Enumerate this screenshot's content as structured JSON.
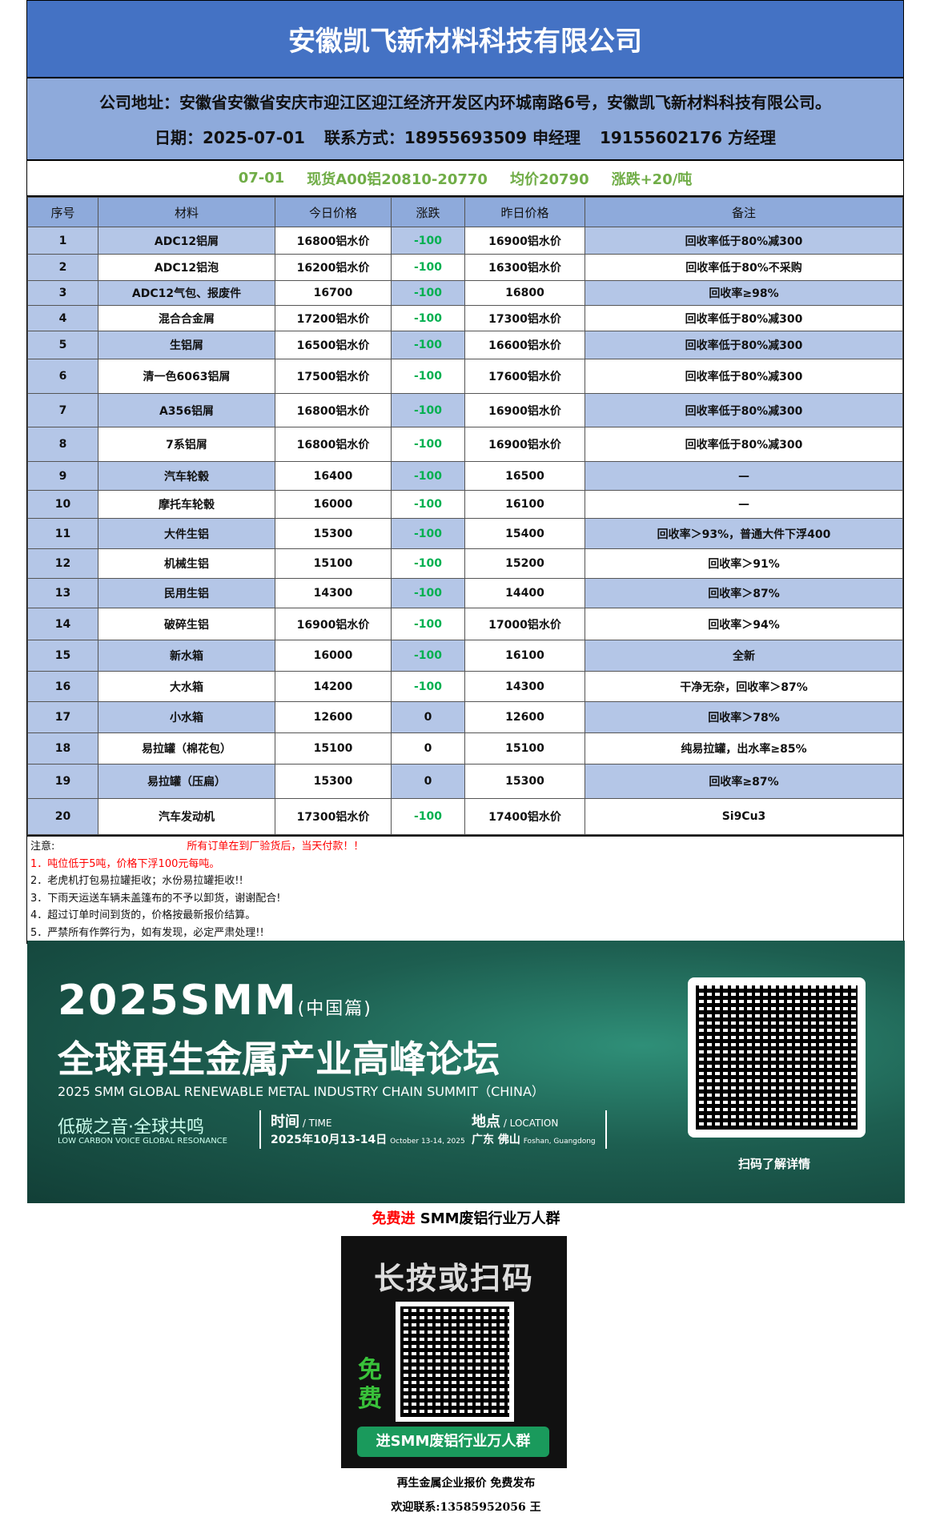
{
  "header": {
    "title": "安徽凯飞新材料科技有限公司",
    "address": "公司地址：安徽省安徽省安庆市迎江区迎江经济开发区内环城南路6号，安徽凯飞新材料科技有限公司。",
    "date": "日期：2025-07-01",
    "contact": "联系方式：18955693509 申经理",
    "contact2": "19155602176 方经理"
  },
  "spot": {
    "date": "07-01",
    "range": "现货A00铝20810-20770",
    "avg": "均价20790",
    "change": "涨跌+20/吨"
  },
  "table": {
    "columns": [
      "序号",
      "材料",
      "今日价格",
      "涨跌",
      "昨日价格",
      "备注"
    ],
    "rows": [
      [
        "1",
        "ADC12铝屑",
        "16800铝水价",
        "-100",
        "16900铝水价",
        "回收率低于80%减300"
      ],
      [
        "2",
        "ADC12铝泡",
        "16200铝水价",
        "-100",
        "16300铝水价",
        "回收率低于80%不采购"
      ],
      [
        "3",
        "ADC12气包、报废件",
        "16700",
        "-100",
        "16800",
        "回收率≥98%"
      ],
      [
        "4",
        "混合合金屑",
        "17200铝水价",
        "-100",
        "17300铝水价",
        "回收率低于80%减300"
      ],
      [
        "5",
        "生铝屑",
        "16500铝水价",
        "-100",
        "16600铝水价",
        "回收率低于80%减300"
      ],
      [
        "6",
        "清一色6063铝屑",
        "17500铝水价",
        "-100",
        "17600铝水价",
        "回收率低于80%减300"
      ],
      [
        "7",
        "A356铝屑",
        "16800铝水价",
        "-100",
        "16900铝水价",
        "回收率低于80%减300"
      ],
      [
        "8",
        "7系铝屑",
        "16800铝水价",
        "-100",
        "16900铝水价",
        "回收率低于80%减300"
      ],
      [
        "9",
        "汽车轮毂",
        "16400",
        "-100",
        "16500",
        "—"
      ],
      [
        "10",
        "摩托车轮毂",
        "16000",
        "-100",
        "16100",
        "—"
      ],
      [
        "11",
        "大件生铝",
        "15300",
        "-100",
        "15400",
        "回收率＞93%，普通大件下浮400"
      ],
      [
        "12",
        "机械生铝",
        "15100",
        "-100",
        "15200",
        "回收率＞91%"
      ],
      [
        "13",
        "民用生铝",
        "14300",
        "-100",
        "14400",
        "回收率＞87%"
      ],
      [
        "14",
        "破碎生铝",
        "16900铝水价",
        "-100",
        "17000铝水价",
        "回收率＞94%"
      ],
      [
        "15",
        "新水箱",
        "16000",
        "-100",
        "16100",
        "全新"
      ],
      [
        "16",
        "大水箱",
        "14200",
        "-100",
        "14300",
        "干净无杂，回收率＞87%"
      ],
      [
        "17",
        "小水箱",
        "12600",
        "0",
        "12600",
        "回收率＞78%"
      ],
      [
        "18",
        "易拉罐（棉花包）",
        "15100",
        "0",
        "15100",
        "纯易拉罐，出水率≥85%"
      ],
      [
        "19",
        "易拉罐（压扁）",
        "15300",
        "0",
        "15300",
        "回收率≥87%"
      ],
      [
        "20",
        "汽车发动机",
        "17300铝水价",
        "-100",
        "17400铝水价",
        "Si9Cu3"
      ]
    ]
  },
  "notes": {
    "label": "注意:",
    "headline": "所有订单在到厂验货后，当天付款！！",
    "items": [
      "1．吨位低于5吨，价格下浮100元每吨。",
      "2．老虎机打包易拉罐拒收；水份易拉罐拒收!!",
      "3．下雨天运送车辆未盖篷布的不予以卸货，谢谢配合!",
      "4．超过订单时间到货的，价格按最新报价结算。",
      "5．严禁所有作弊行为，如有发现，必定严肃处理!!"
    ]
  },
  "banner": {
    "year": "2025SMM",
    "edition": "(中国篇)",
    "title": "全球再生金属产业高峰论坛",
    "subtitle": "2025 SMM GLOBAL RENEWABLE METAL INDUSTRY CHAIN SUMMIT（CHINA）",
    "slogan": "低碳之音·全球共鸣",
    "slogan_en": "LOW CARBON VOICE GLOBAL RESONANCE",
    "time_label": "时间",
    "time_en": "/ TIME",
    "time": "2025年10月13-14日",
    "time_date_en": "October 13-14, 2025",
    "loc_label": "地点",
    "loc_en": "/ LOCATION",
    "loc": "广东 佛山",
    "loc_city_en": "Foshan, Guangdong",
    "scan": "扫码了解详情"
  },
  "group": {
    "free": "免费进",
    "title": " SMM废铝行业万人群",
    "card_title": "长按或扫码",
    "free_badge": "免费",
    "card_button": "进SMM废铝行业万人群"
  },
  "footer": {
    "line1": "再生金属企业报价  免费发布",
    "line2": "欢迎联系:13585952056  王"
  },
  "colors": {
    "title_bg": "#4472c4",
    "band_bg": "#8eaadb",
    "row_alt": "#b4c6e7",
    "spot_text": "#70ad47",
    "negative": "#00b050"
  }
}
